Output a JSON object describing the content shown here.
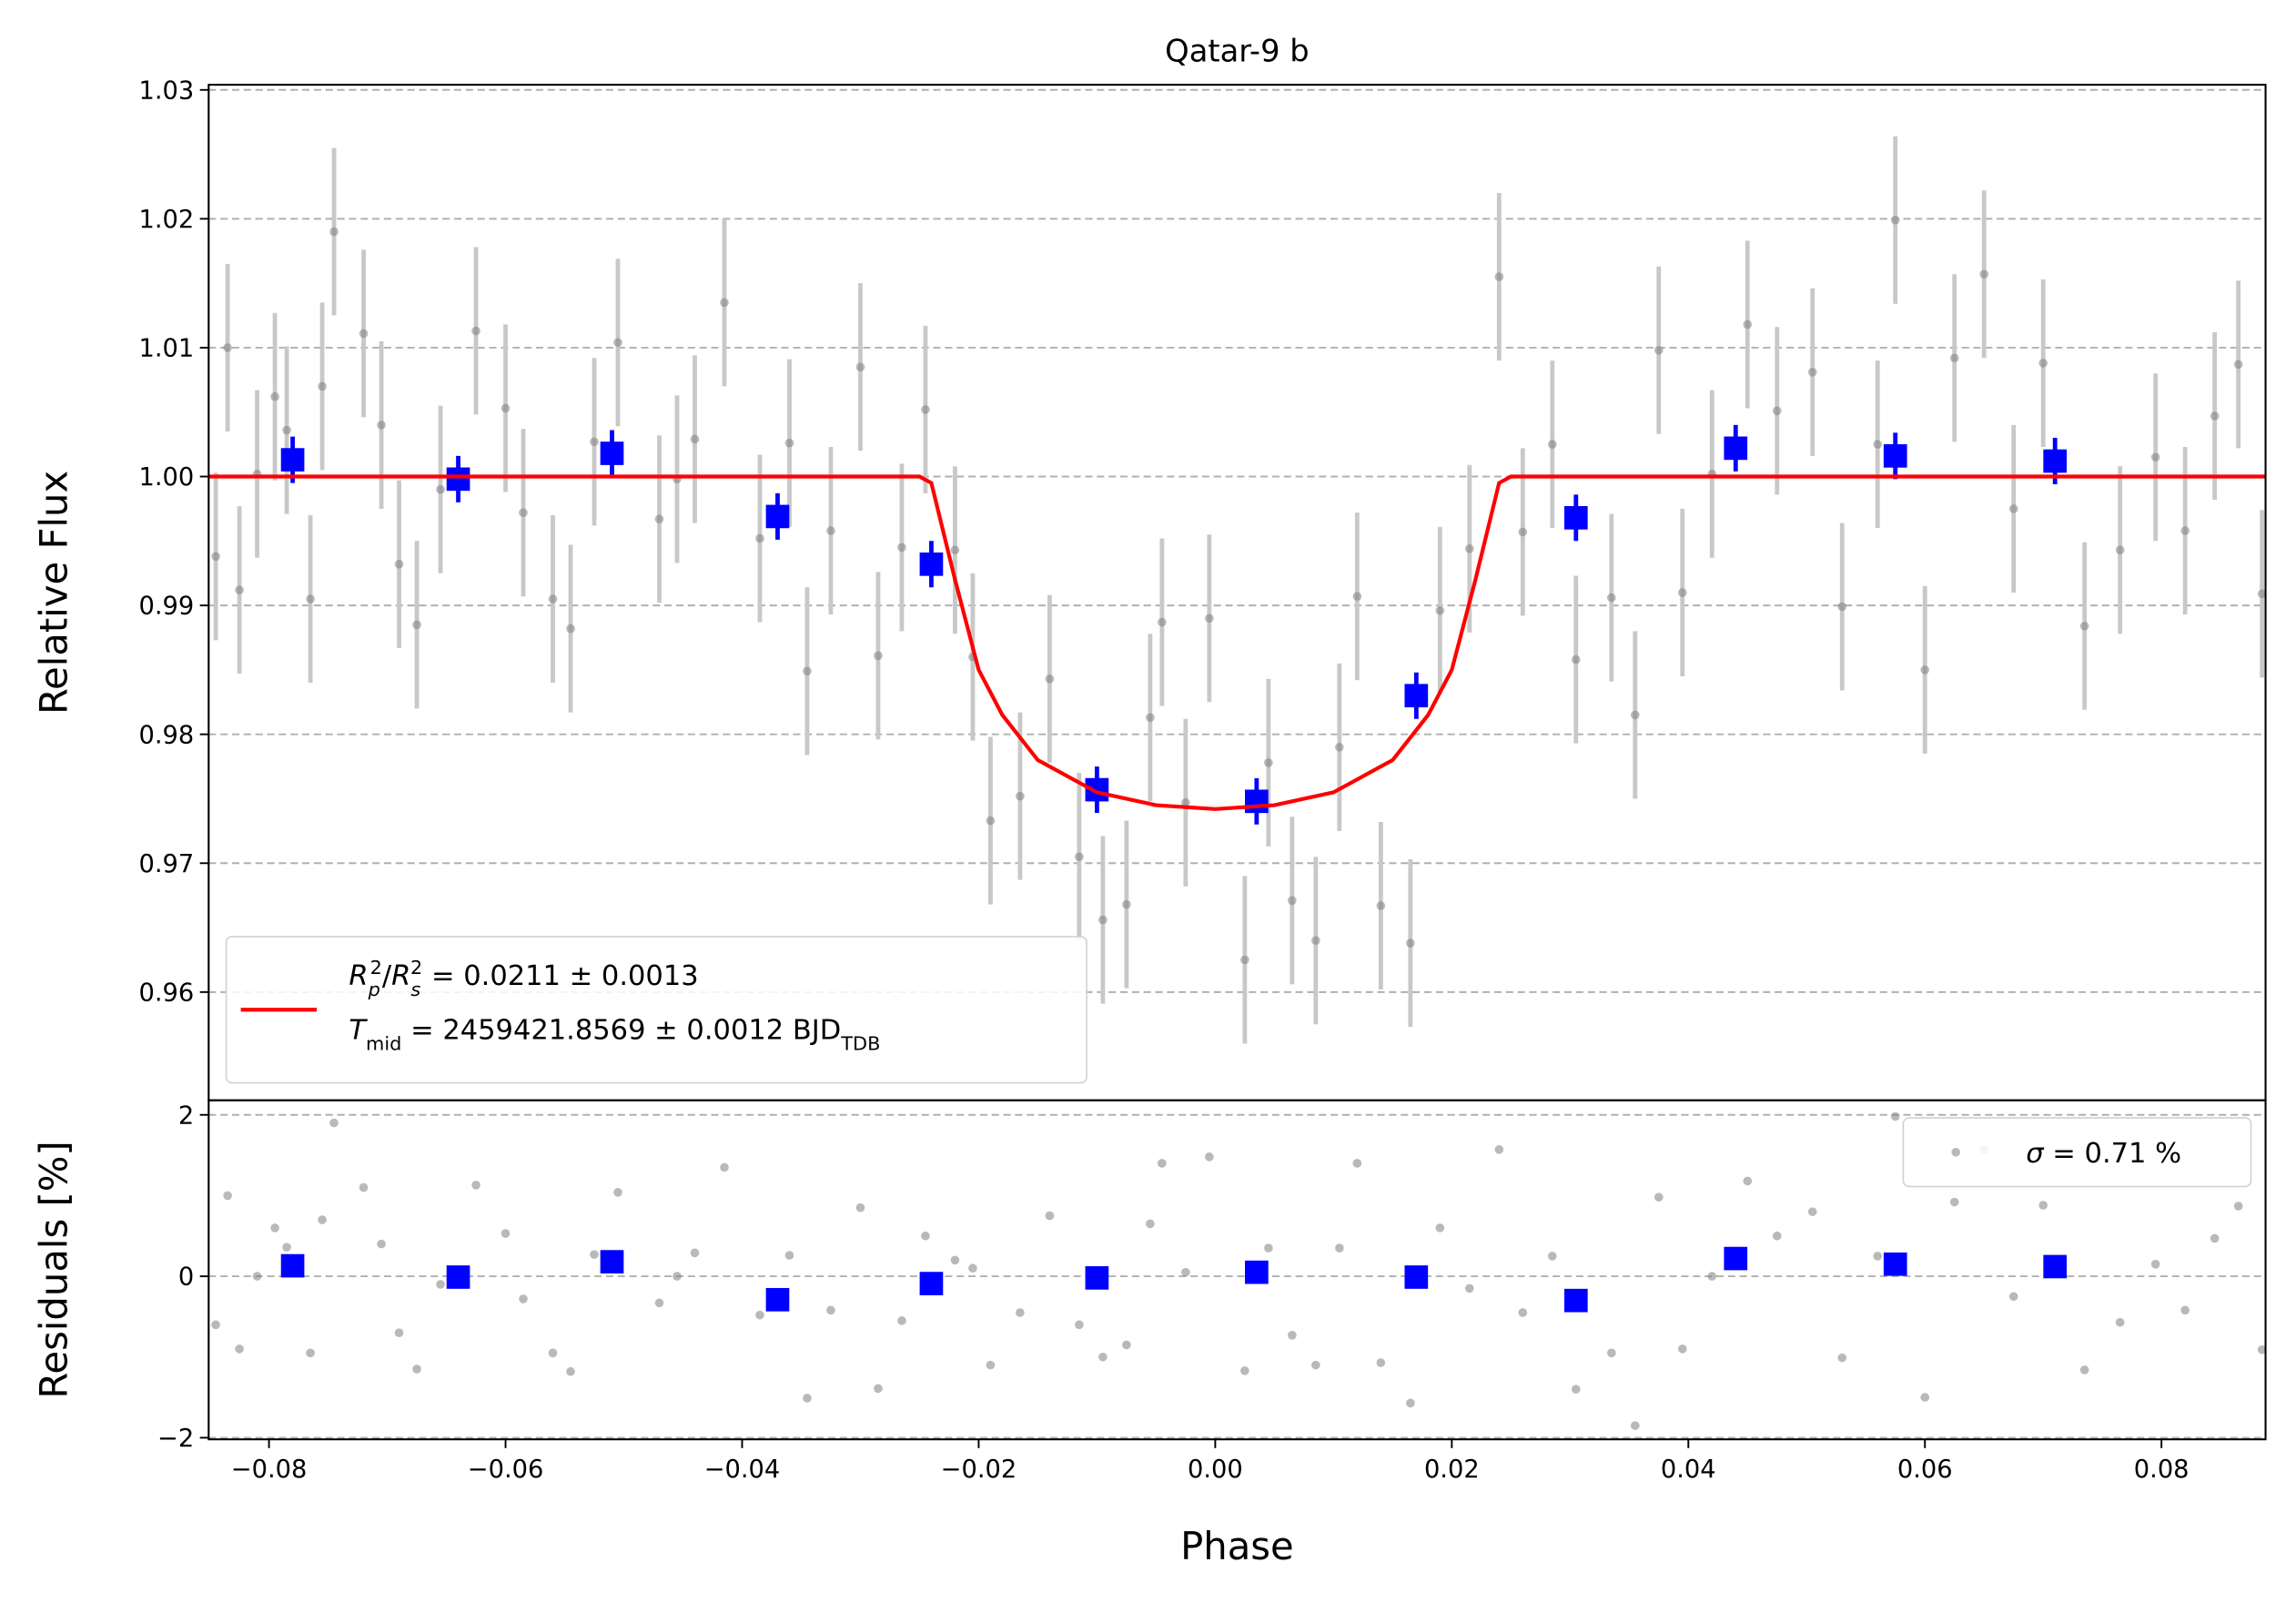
{
  "chart_data": [
    {
      "type": "scatter",
      "title": "Qatar-9 b",
      "ylabel": "Relative Flux",
      "xlim": [
        -0.0851,
        0.0888
      ],
      "ylim": [
        0.9516,
        1.0304
      ],
      "yticks": [
        0.96,
        0.97,
        0.98,
        0.99,
        {
          "value": 1.0,
          "label": "1.00"
        },
        1.01,
        1.02,
        1.03
      ],
      "grid": true,
      "legend": "lower left",
      "series": [
        {
          "type": "errorbar",
          "color": "#808080",
          "yerr": 0.0065,
          "x": [
            -0.0845,
            -0.0835,
            -0.0825,
            -0.081,
            -0.0795,
            -0.0785,
            -0.0765,
            -0.0755,
            -0.0745,
            -0.072,
            -0.0705,
            -0.069,
            -0.0675,
            -0.0655,
            -0.0625,
            -0.06,
            -0.0585,
            -0.056,
            -0.0545,
            -0.0525,
            -0.0505,
            -0.047,
            -0.0455,
            -0.044,
            -0.0415,
            -0.0385,
            -0.036,
            -0.0345,
            -0.0325,
            -0.03,
            -0.0285,
            -0.0265,
            -0.0245,
            -0.022,
            -0.0205,
            -0.019,
            -0.0165,
            -0.014,
            -0.0115,
            -0.0095,
            -0.0075,
            -0.0055,
            -0.0045,
            -0.0025,
            -0.0005,
            0.0025,
            0.0045,
            0.0065,
            0.0085,
            0.0105,
            0.012,
            0.014,
            0.0165,
            0.019,
            0.0215,
            0.024,
            0.026,
            0.0285,
            0.0305,
            0.0335,
            0.0355,
            0.0375,
            0.0395,
            0.042,
            0.045,
            0.0475,
            0.0505,
            0.053,
            0.056,
            0.0575,
            0.06,
            0.0625,
            0.065,
            0.0675,
            0.07,
            0.0735,
            0.0765,
            0.0795,
            0.082,
            0.0845,
            0.0865,
            0.0885
          ],
          "values": [
            0.9938,
            1.01,
            0.9912,
            1.0002,
            1.0062,
            1.0036,
            0.9905,
            1.007,
            1.019,
            1.0111,
            1.004,
            0.9932,
            0.9885,
            0.999,
            1.0113,
            1.0053,
            0.9972,
            0.9905,
            0.9882,
            1.0027,
            1.0104,
            0.9967,
            0.9998,
            1.0029,
            1.0135,
            0.9952,
            1.0026,
            0.9849,
            0.9958,
            1.0085,
            0.9861,
            0.9945,
            1.0052,
            0.9943,
            0.986,
            0.9733,
            0.9752,
            0.9843,
            0.9705,
            0.9656,
            0.9668,
            0.9813,
            0.9887,
            0.9747,
            0.989,
            0.9625,
            0.9778,
            0.9671,
            0.964,
            0.979,
            0.9907,
            0.9667,
            0.9638,
            0.9896,
            0.9944,
            1.0155,
            0.9957,
            1.0025,
            0.9858,
            0.9906,
            0.9815,
            1.0098,
            0.991,
            1.0002,
            1.0118,
            1.0051,
            1.0081,
            0.9899,
            1.0025,
            1.0199,
            0.985,
            1.0092,
            1.0157,
            0.9975,
            1.0088,
            0.9884,
            0.9943,
            1.0015,
            0.9958,
            1.0047,
            1.0087,
            0.9909
          ]
        },
        {
          "type": "errorbar",
          "color": "#0000ff",
          "yerr": 0.0018,
          "marker": "square",
          "x": [
            -0.078,
            -0.064,
            -0.051,
            -0.037,
            -0.024,
            -0.01,
            0.0035,
            0.017,
            0.0305,
            0.044,
            0.0575,
            0.071
          ],
          "values": [
            1.0013,
            0.9998,
            1.0018,
            0.9969,
            0.9932,
            0.9757,
            0.9748,
            0.983,
            0.9968,
            1.0022,
            1.0016,
            1.0012
          ]
        },
        {
          "type": "line",
          "color": "#ff0000",
          "name_parts": [
            [
              {
                "t": "R",
                "s": "i"
              },
              {
                "t": "p",
                "s": "sub"
              },
              {
                "t": "2",
                "s": "sup"
              },
              {
                "t": "/",
                "s": ""
              },
              {
                "t": "R",
                "s": "i"
              },
              {
                "t": "s",
                "s": "sub"
              },
              {
                "t": "2",
                "s": "sup"
              },
              {
                "t": " = 0.0211 ± 0.0013",
                "s": ""
              }
            ],
            [
              {
                "t": "T",
                "s": "i"
              },
              {
                "t": "mid",
                "s": "sub"
              },
              {
                "t": " = 2459421.8569 ± 0.0012 BJD",
                "s": ""
              },
              {
                "t": "TDB",
                "s": "sub"
              }
            ]
          ],
          "x": [
            -0.0851,
            -0.025,
            -0.024,
            -0.022,
            -0.02,
            -0.018,
            -0.015,
            -0.01,
            -0.005,
            0,
            0.005,
            0.01,
            0.015,
            0.018,
            0.02,
            0.022,
            0.024,
            0.025,
            0.0888
          ],
          "values": [
            1,
            1,
            0.9995,
            0.992,
            0.985,
            0.9815,
            0.978,
            0.9755,
            0.9745,
            0.9742,
            0.9745,
            0.9755,
            0.978,
            0.9815,
            0.985,
            0.992,
            0.9995,
            1,
            1
          ]
        }
      ]
    },
    {
      "type": "scatter",
      "ylabel": "Residuals [%]",
      "xlabel": "Phase",
      "xlim": [
        -0.0851,
        0.0888
      ],
      "ylim": [
        -2.02,
        2.18
      ],
      "xticks": [
        {
          "value": -0.08,
          "label": "−0.08"
        },
        {
          "value": -0.06,
          "label": "−0.06"
        },
        {
          "value": -0.04,
          "label": "−0.04"
        },
        {
          "value": -0.02,
          "label": "−0.02"
        },
        {
          "value": 0,
          "label": "0.00"
        },
        0.02,
        0.04,
        0.06,
        0.08
      ],
      "yticks": [
        {
          "value": -2,
          "label": "−2"
        },
        0,
        2
      ],
      "grid": true,
      "legend": "upper right",
      "series": [
        {
          "type": "scatter",
          "color": "#808080",
          "name_parts": [
            [
              {
                "t": "σ",
                "s": "i"
              },
              {
                "t": " = 0.71 %",
                "s": ""
              }
            ]
          ],
          "x": [
            -0.0845,
            -0.0835,
            -0.0825,
            -0.081,
            -0.0795,
            -0.0785,
            -0.0765,
            -0.0755,
            -0.0745,
            -0.072,
            -0.0705,
            -0.069,
            -0.0675,
            -0.0655,
            -0.0625,
            -0.06,
            -0.0585,
            -0.056,
            -0.0545,
            -0.0525,
            -0.0505,
            -0.047,
            -0.0455,
            -0.044,
            -0.0415,
            -0.0385,
            -0.036,
            -0.0345,
            -0.0325,
            -0.03,
            -0.0285,
            -0.0265,
            -0.0245,
            -0.022,
            -0.0205,
            -0.019,
            -0.0165,
            -0.014,
            -0.0115,
            -0.0095,
            -0.0075,
            -0.0055,
            -0.0045,
            -0.0025,
            -0.0005,
            0.0025,
            0.0045,
            0.0065,
            0.0085,
            0.0105,
            0.012,
            0.014,
            0.0165,
            0.019,
            0.0215,
            0.024,
            0.026,
            0.0285,
            0.0305,
            0.0335,
            0.0355,
            0.0375,
            0.0395,
            0.042,
            0.045,
            0.0475,
            0.0505,
            0.053,
            0.056,
            0.0575,
            0.06,
            0.0625,
            0.065,
            0.0675,
            0.07,
            0.0735,
            0.0765,
            0.0795,
            0.082,
            0.0845,
            0.0865,
            0.0885
          ],
          "values": [
            -0.6,
            1.0,
            -0.9,
            0.0,
            0.6,
            0.36,
            -0.95,
            0.7,
            1.9,
            1.1,
            0.4,
            -0.7,
            -1.15,
            -0.1,
            1.13,
            0.53,
            -0.28,
            -0.95,
            -1.18,
            0.27,
            1.04,
            -0.33,
            0.0,
            0.29,
            1.35,
            -0.48,
            0.26,
            -1.51,
            -0.42,
            0.85,
            -1.39,
            -0.55,
            0.5,
            0.2,
            0.1,
            -1.1,
            -0.45,
            0.75,
            -0.6,
            -1.0,
            -0.85,
            0.65,
            1.4,
            0.05,
            1.48,
            -1.17,
            0.35,
            -0.73,
            -1.1,
            0.35,
            1.4,
            -1.07,
            -1.57,
            0.6,
            -0.15,
            1.57,
            -0.45,
            0.25,
            -1.4,
            -0.95,
            -1.85,
            0.98,
            -0.9,
            0.0,
            1.18,
            0.5,
            0.8,
            -1.01,
            0.25,
            1.98,
            -1.5,
            0.92,
            1.57,
            -0.25,
            0.88,
            -1.16,
            -0.57,
            0.15,
            -0.42,
            0.47,
            0.87,
            -0.91
          ]
        },
        {
          "type": "scatter",
          "color": "#0000ff",
          "marker": "square",
          "x": [
            -0.078,
            -0.064,
            -0.051,
            -0.037,
            -0.024,
            -0.01,
            0.0035,
            0.017,
            0.0305,
            0.044,
            0.0575,
            0.071
          ],
          "values": [
            0.13,
            -0.01,
            0.18,
            -0.29,
            -0.09,
            -0.02,
            0.05,
            -0.01,
            -0.3,
            0.22,
            0.15,
            0.12
          ]
        }
      ]
    }
  ]
}
